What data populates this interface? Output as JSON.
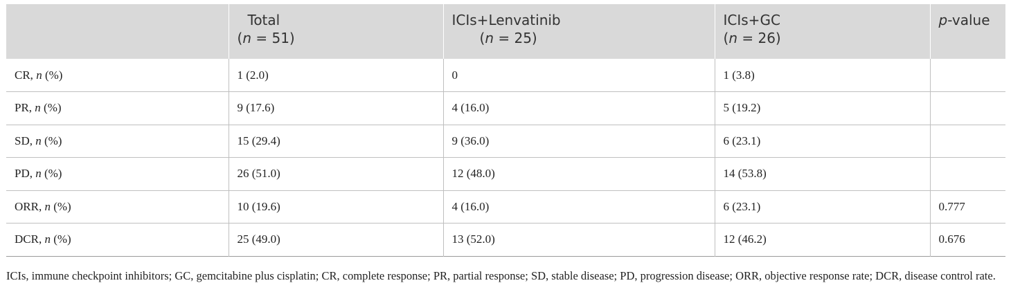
{
  "table": {
    "headers": [
      {
        "line1": "",
        "line2_pre": "",
        "line2_italic": "",
        "line2_post": ""
      },
      {
        "line1": "Total",
        "line2_pre": "(",
        "line2_italic": "n",
        "line2_post": " = 51)"
      },
      {
        "line1": "ICIs+Lenvatinib",
        "line2_pre": "(",
        "line2_italic": "n",
        "line2_post": " = 25)"
      },
      {
        "line1": "ICIs+GC",
        "line2_pre": "(",
        "line2_italic": "n",
        "line2_post": " = 26)"
      },
      {
        "line1_italic": "p",
        "line1_post": "-value"
      }
    ],
    "rows": [
      {
        "label_pre": "CR, ",
        "label_italic": "n",
        "label_post": " (%)",
        "total": "1 (2.0)",
        "lenvatinib": "0",
        "gc": "1 (3.8)",
        "pvalue": ""
      },
      {
        "label_pre": "PR, ",
        "label_italic": "n",
        "label_post": " (%)",
        "total": "9 (17.6)",
        "lenvatinib": "4 (16.0)",
        "gc": "5 (19.2)",
        "pvalue": ""
      },
      {
        "label_pre": "SD, ",
        "label_italic": "n",
        "label_post": " (%)",
        "total": "15 (29.4)",
        "lenvatinib": "9 (36.0)",
        "gc": "6 (23.1)",
        "pvalue": ""
      },
      {
        "label_pre": "PD, ",
        "label_italic": "n",
        "label_post": " (%)",
        "total": "26 (51.0)",
        "lenvatinib": "12 (48.0)",
        "gc": "14 (53.8)",
        "pvalue": ""
      },
      {
        "label_pre": "ORR, ",
        "label_italic": "n",
        "label_post": " (%)",
        "total": "10 (19.6)",
        "lenvatinib": "4 (16.0)",
        "gc": "6 (23.1)",
        "pvalue": "0.777"
      },
      {
        "label_pre": "DCR, ",
        "label_italic": "n",
        "label_post": " (%)",
        "total": "25 (49.0)",
        "lenvatinib": "13 (52.0)",
        "gc": "12 (46.2)",
        "pvalue": "0.676"
      }
    ]
  },
  "footnote": "ICIs, immune checkpoint inhibitors; GC, gemcitabine plus cisplatin; CR, complete response; PR, partial response; SD, stable disease; PD, progression disease; ORR, objective response rate; DCR, disease control rate."
}
